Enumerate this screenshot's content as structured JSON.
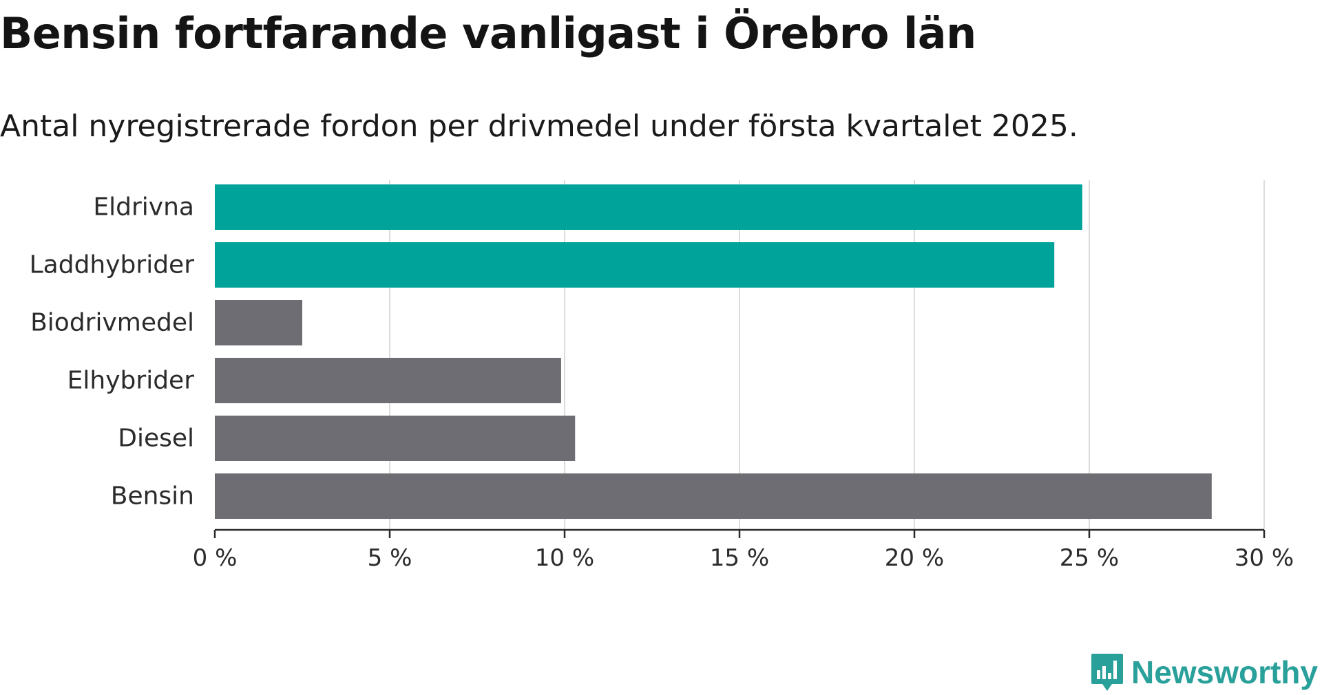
{
  "header": {
    "title": "Bensin fortfarande vanligast i Örebro län",
    "subtitle": "Antal nyregistrerade fordon per drivmedel under första kvartalet 2025."
  },
  "chart_data": {
    "type": "bar",
    "orientation": "horizontal",
    "categories": [
      "Eldrivna",
      "Laddhybrider",
      "Biodrivmedel",
      "Elhybrider",
      "Diesel",
      "Bensin"
    ],
    "values": [
      24.8,
      24.0,
      2.5,
      9.9,
      10.3,
      28.5
    ],
    "colors": [
      "#00a39a",
      "#00a39a",
      "#6e6d73",
      "#6e6d73",
      "#6e6d73",
      "#6e6d73"
    ],
    "xlim": [
      0,
      30
    ],
    "ticks": [
      0,
      5,
      10,
      15,
      20,
      25,
      30
    ],
    "tick_labels": [
      "0 %",
      "5 %",
      "10 %",
      "15 %",
      "20 %",
      "25 %",
      "30 %"
    ],
    "grid": "vertical"
  },
  "brand": {
    "name": "Newsworthy",
    "color": "#2aa09a",
    "icon": "bar-chart-icon"
  }
}
